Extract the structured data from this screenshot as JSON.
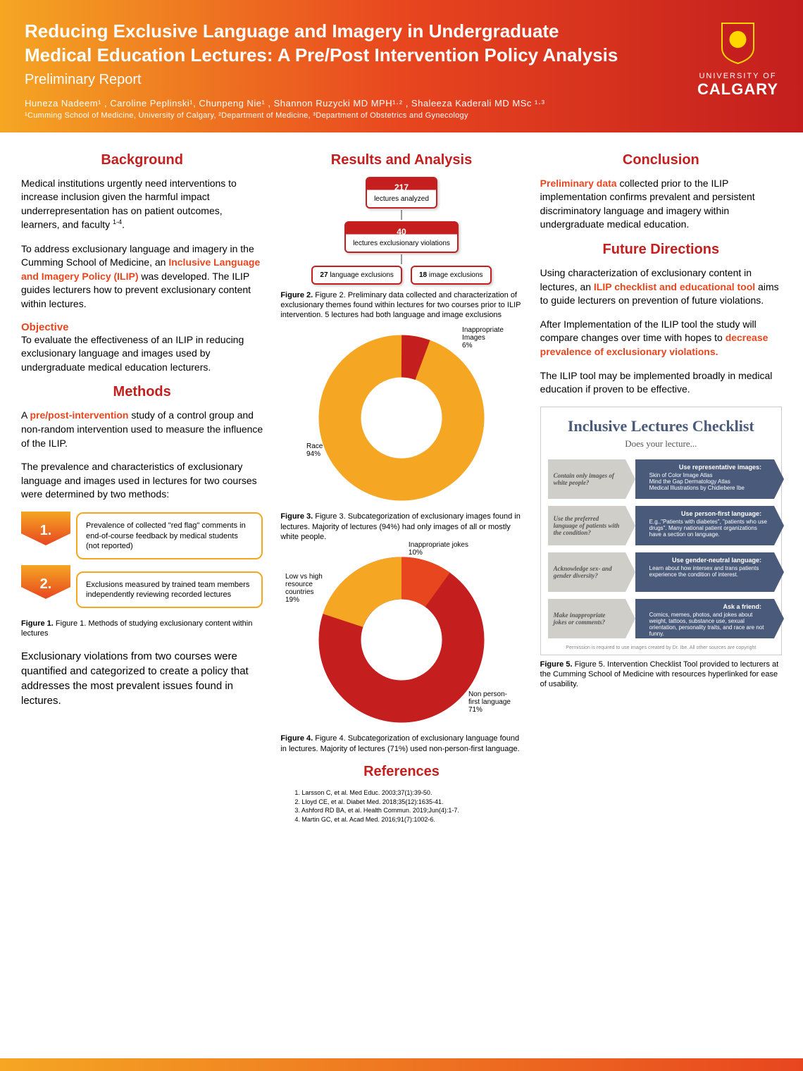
{
  "header": {
    "title": "Reducing Exclusive Language and Imagery in Undergraduate Medical Education Lectures: A Pre/Post Intervention Policy Analysis",
    "subtitle": "Preliminary Report",
    "authors": "Huneza Nadeem¹ , Caroline Peplinski¹, Chunpeng Nie¹ , Shannon Ruzycki MD MPH¹·² , Shaleeza Kaderali MD MSc ¹·³",
    "affiliations": "¹Cumming School of Medicine, University of Calgary, ²Department of Medicine, ³Department of Obstetrics and Gynecology",
    "logo_uni": "UNIVERSITY OF",
    "logo_cal": "CALGARY"
  },
  "background": {
    "title": "Background",
    "p1a": "Medical institutions urgently need interventions to increase inclusion given the harmful impact underrepresentation has on patient outcomes, learners, and faculty ",
    "p1b": "1-4",
    "p1c": ".",
    "p2a": "To address exclusionary language and imagery in the Cumming School of Medicine, an ",
    "p2b": "Inclusive Language and Imagery Policy (ILIP)",
    "p2c": " was developed. The ILIP guides lecturers how to prevent exclusionary content within lectures.",
    "obj_label": "Objective",
    "obj": "To evaluate the effectiveness of an ILIP in reducing exclusionary language and images used by undergraduate medical education lecturers."
  },
  "methods": {
    "title": "Methods",
    "p1a": "A ",
    "p1b": "pre/post-intervention",
    "p1c": " study of a control group and non-random intervention used to measure the influence of the ILIP.",
    "p2": "The prevalence and characteristics of exclusionary language and images used in lectures for two courses were determined by two methods:",
    "m1_num": "1.",
    "m1": "Prevalence of collected \"red flag\" comments in end-of-course feedback by medical students (not reported)",
    "m2_num": "2.",
    "m2": "Exclusions measured by trained team members independently reviewing recorded lectures",
    "fig1": "Figure 1. Methods of studying exclusionary content within lectures",
    "p3": "Exclusionary violations from two courses were quantified and categorized to create a policy that addresses the most prevalent issues found in lectures."
  },
  "results": {
    "title": "Results and Analysis",
    "flow": {
      "box1_n": "217",
      "box1_t": "lectures analyzed",
      "box2_n": "40",
      "box2_t": "lectures exclusionary violations",
      "box3_n": "27",
      "box3_t": "language exclusions",
      "box4_n": "18",
      "box4_t": "image exclusions"
    },
    "fig2": "Figure 2. Preliminary data collected and characterization of exclusionary themes found within lectures for two courses prior to ILIP intervention. 5 lectures had both language and image exclusions",
    "donut1": {
      "slices": [
        {
          "label": "Race",
          "pct": 94,
          "color": "#f5a623"
        },
        {
          "label": "Inappropriate Images",
          "pct": 6,
          "color": "#c41e1e"
        }
      ],
      "l1": "Race 94%",
      "l2": "Inappropriate Images 6%"
    },
    "fig3": "Figure 3. Subcategorization of exclusionary images found in lectures. Majority of lectures (94%) had only images of all or mostly white people.",
    "donut2": {
      "slices": [
        {
          "label": "Non person-first language",
          "pct": 71,
          "color": "#c41e1e"
        },
        {
          "label": "Low vs high resource countries",
          "pct": 19,
          "color": "#f5a623"
        },
        {
          "label": "Inappropriate jokes",
          "pct": 10,
          "color": "#e8461f"
        }
      ],
      "l1": "Non person-first language 71%",
      "l2": "Low vs high resource countries 19%",
      "l3": "Inappropriate jokes 10%"
    },
    "fig4": "Figure 4. Subcategorization of exclusionary language found in lectures. Majority of lectures (71%) used non-person-first language.",
    "ref_title": "References",
    "refs": [
      "1. Larsson C, et al. Med Educ. 2003;37(1):39-50.",
      "2. Lloyd CE, et al. Diabet Med. 2018;35(12):1635-41.",
      "3. Ashford RD BA, et al. Health Commun. 2019;Jun(4):1-7.",
      "4. Martin GC, et al. Acad Med. 2016;91(7):1002-6."
    ]
  },
  "conclusion": {
    "title": "Conclusion",
    "p1a": "Preliminary data",
    "p1b": " collected prior to the ILIP implementation confirms prevalent and persistent discriminatory language and imagery within undergraduate medical education.",
    "fd_title": "Future Directions",
    "p2a": "Using characterization of exclusionary content in lectures, an ",
    "p2b": "ILIP checklist and educational tool",
    "p2c": " aims to guide lecturers on prevention of future violations.",
    "p3a": "After Implementation of the ILIP tool the study will compare changes over time with hopes to ",
    "p3b": "decrease prevalence of exclusionary violations.",
    "p4": "The ILIP tool may be implemented broadly in medical education if proven to be effective."
  },
  "checklist": {
    "title": "Inclusive Lectures Checklist",
    "sub": "Does your lecture...",
    "rows": [
      {
        "q": "Contain only images of white people?",
        "at": "Use representative images:",
        "a": "Skin of Color Image Atlas\nMind the Gap Dermatology Atlas\nMedical Illustrations by Chidiebere Ibe"
      },
      {
        "q": "Use the preferred language of patients with the condition?",
        "at": "Use person-first language:",
        "a": "E.g.,\"Patients with diabetes\", \"patients who use drugs\". Many national patient organizations have a section on language."
      },
      {
        "q": "Acknowledge sex- and gender diversity?",
        "at": "Use gender-neutral language:",
        "a": "Learn about how intersex and trans patients experience the condition of interest."
      },
      {
        "q": "Make inappropriate jokes or comments?",
        "at": "Ask a friend:",
        "a": "Comics, memes, photos, and jokes about weight, tattoos, substance use, sexual orientation, personality traits, and race are not funny."
      }
    ],
    "perm": "Permission is required to use images created by Dr. Ibe. All other sources are copyright",
    "fig5": "Figure 5. Intervention Checklist Tool provided to lecturers at the Cumming School of Medicine with resources hyperlinked for ease of usability."
  }
}
